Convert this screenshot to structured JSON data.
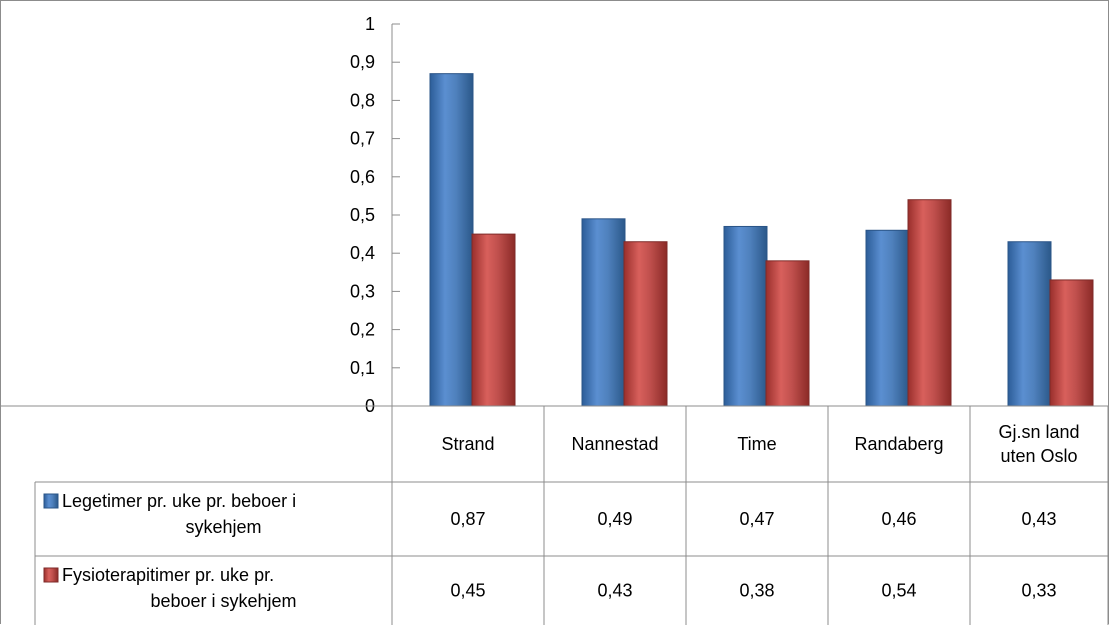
{
  "chart_data": {
    "type": "bar",
    "categories": [
      "Strand",
      "Nannestad",
      "Time",
      "Randaberg",
      "Gj.sn land uten Oslo"
    ],
    "category_lines": [
      [
        "Strand"
      ],
      [
        "Nannestad"
      ],
      [
        "Time"
      ],
      [
        "Randaberg"
      ],
      [
        "Gj.sn land",
        "uten Oslo"
      ]
    ],
    "series": [
      {
        "name": "Legetimer pr. uke pr. beboer i sykehjem",
        "name_lines": [
          "Legetimer pr. uke pr. beboer i",
          "sykehjem"
        ],
        "color": "#4f81bd",
        "values": [
          0.87,
          0.49,
          0.47,
          0.46,
          0.43
        ],
        "value_labels": [
          "0,87",
          "0,49",
          "0,47",
          "0,46",
          "0,43"
        ]
      },
      {
        "name": "Fysioterapitimer pr. uke pr. beboer i sykehjem",
        "name_lines": [
          "Fysioterapitimer pr. uke pr.",
          "beboer i sykehjem"
        ],
        "color": "#c0504d",
        "values": [
          0.45,
          0.43,
          0.38,
          0.54,
          0.33
        ],
        "value_labels": [
          "0,45",
          "0,43",
          "0,38",
          "0,54",
          "0,33"
        ]
      }
    ],
    "ylim": [
      0,
      1
    ],
    "yticks": [
      0,
      0.1,
      0.2,
      0.3,
      0.4,
      0.5,
      0.6,
      0.7,
      0.8,
      0.9,
      1
    ],
    "ytick_labels": [
      "0",
      "0,1",
      "0,2",
      "0,3",
      "0,4",
      "0,5",
      "0,6",
      "0,7",
      "0,8",
      "0,9",
      "1"
    ],
    "legend": "data-table",
    "grid": false
  }
}
